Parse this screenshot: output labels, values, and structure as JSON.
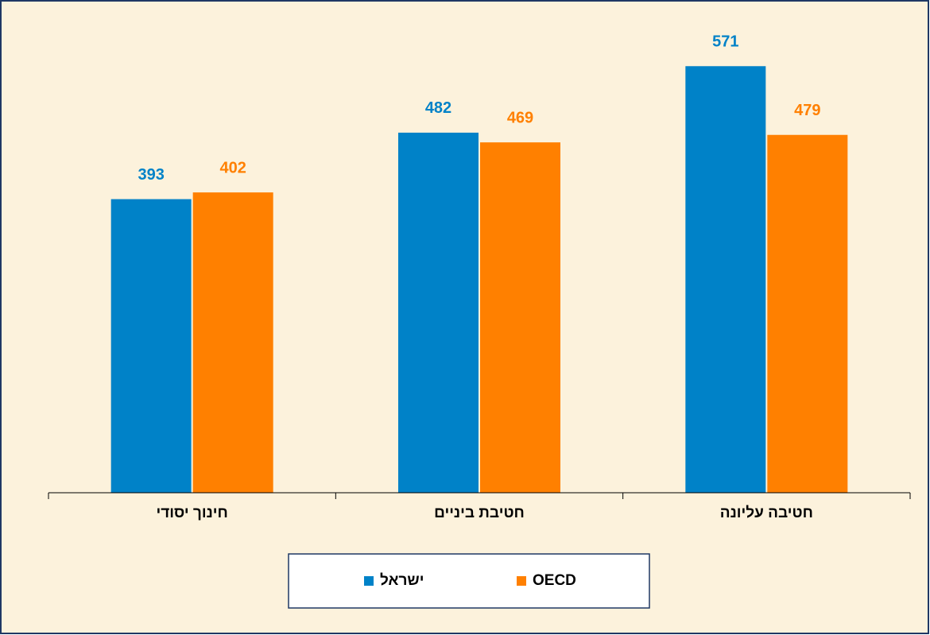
{
  "chart_data": {
    "type": "bar",
    "categories": [
      "חינוך יסודי",
      "חטיבת ביניים",
      "חטיבה עליונה"
    ],
    "series": [
      {
        "name": "ישראל",
        "color": "#0082c8",
        "values": [
          393,
          482,
          571
        ]
      },
      {
        "name": "OECD",
        "color": "#ff8000",
        "values": [
          402,
          469,
          479
        ]
      }
    ],
    "ylim": [
      0,
      600
    ]
  }
}
